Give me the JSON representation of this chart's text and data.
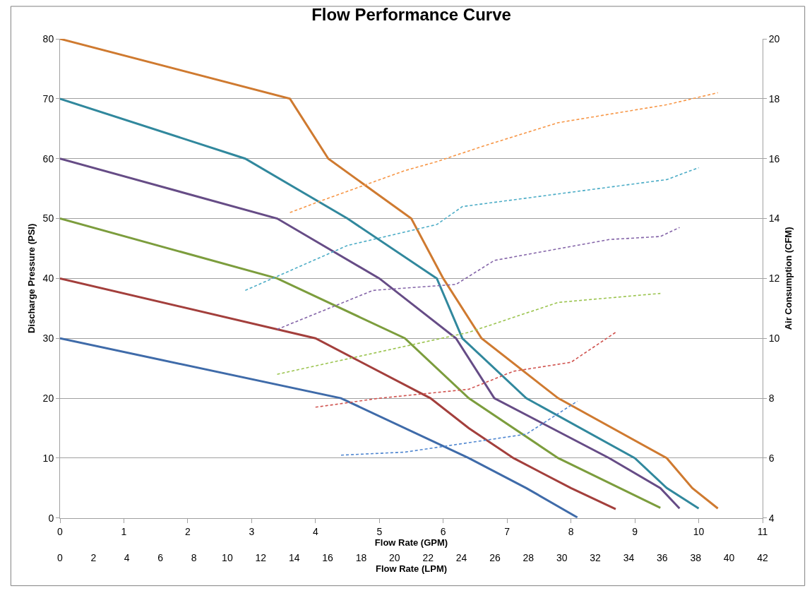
{
  "chart_data": {
    "type": "line",
    "title": "Flow Performance Curve",
    "xlabel": "Flow Rate (GPM)",
    "x2label": "Flow Rate (LPM)",
    "ylabel": "Discharge Pressure (PSI)",
    "y2label": "Air Consumption (CFM)",
    "xlim": [
      0,
      11
    ],
    "xticks": [
      0,
      1,
      2,
      3,
      4,
      5,
      6,
      7,
      8,
      9,
      10,
      11
    ],
    "x2lim": [
      0,
      42
    ],
    "x2ticks": [
      0,
      2,
      4,
      6,
      8,
      10,
      12,
      14,
      16,
      18,
      20,
      22,
      24,
      26,
      28,
      30,
      32,
      34,
      36,
      38,
      40,
      42
    ],
    "ylim": [
      0,
      80
    ],
    "yticks": [
      0,
      10,
      20,
      30,
      40,
      50,
      60,
      70,
      80
    ],
    "y2lim": [
      4,
      20
    ],
    "y2ticks": [
      4,
      6,
      8,
      10,
      12,
      14,
      16,
      18,
      20
    ],
    "grid": "y",
    "marker": "none",
    "series": [
      {
        "color": "#3f6ba9",
        "line_style": "solid",
        "x": [
          0,
          4.4,
          6.4,
          7.3,
          8.1
        ],
        "values": [
          30,
          20,
          10,
          5,
          0.1
        ]
      },
      {
        "color": "#a33f3c",
        "line_style": "solid",
        "x": [
          0,
          4,
          5.8,
          6.4,
          7.1,
          8,
          8.7
        ],
        "values": [
          40,
          30,
          20,
          15,
          10,
          5,
          1.5
        ]
      },
      {
        "color": "#7c9d3d",
        "line_style": "solid",
        "x": [
          0,
          3.4,
          5.4,
          6.4,
          7.8,
          9.4
        ],
        "values": [
          50,
          40,
          30,
          20,
          10,
          1.7
        ]
      },
      {
        "color": "#664c86",
        "line_style": "solid",
        "x": [
          0,
          3.4,
          5,
          6.2,
          6.8,
          8.6,
          9.4,
          9.7
        ],
        "values": [
          60,
          50,
          40,
          30,
          20,
          10,
          5,
          1.6
        ]
      },
      {
        "color": "#31889d",
        "line_style": "solid",
        "x": [
          0,
          2.9,
          4.5,
          5.9,
          6.3,
          7.3,
          9,
          9.5,
          10
        ],
        "values": [
          70,
          60,
          50,
          40,
          30,
          20,
          10,
          5,
          1.6
        ]
      },
      {
        "color": "#cf7a30",
        "line_style": "solid",
        "x": [
          0,
          3.6,
          4.2,
          5.5,
          6,
          6.6,
          7.8,
          9.5,
          9.9,
          10.3
        ],
        "values": [
          80,
          70,
          60,
          50,
          40,
          30,
          20,
          10,
          5,
          1.6
        ]
      },
      {
        "color": "#4f86d0",
        "line_style": "dashed",
        "axis": "y2",
        "x": [
          4.4,
          5.4,
          7.3,
          8.1
        ],
        "values": [
          6.1,
          6.2,
          6.8,
          7.9
        ]
      },
      {
        "color": "#d0534f",
        "line_style": "dashed",
        "axis": "y2",
        "x": [
          4,
          5,
          6.4,
          7.1,
          8,
          8.7
        ],
        "values": [
          7.7,
          8,
          8.3,
          8.9,
          9.2,
          10.2
        ]
      },
      {
        "color": "#9bc44f",
        "line_style": "dashed",
        "axis": "y2",
        "x": [
          3.4,
          6.4,
          7.8,
          9.4
        ],
        "values": [
          8.8,
          10.2,
          11.2,
          11.5
        ]
      },
      {
        "color": "#8464a8",
        "line_style": "dashed",
        "axis": "y2",
        "x": [
          3.4,
          4.9,
          6.2,
          6.8,
          8.6,
          9.4,
          9.7
        ],
        "values": [
          10.3,
          11.6,
          11.8,
          12.6,
          13.3,
          13.4,
          13.7
        ]
      },
      {
        "color": "#4bacc6",
        "line_style": "dashed",
        "axis": "y2",
        "x": [
          2.9,
          4.5,
          5.9,
          6.3,
          9.5,
          10
        ],
        "values": [
          11.6,
          13.1,
          13.8,
          14.4,
          15.3,
          15.7
        ]
      },
      {
        "color": "#f79646",
        "line_style": "dashed",
        "axis": "y2",
        "x": [
          3.6,
          4.1,
          5.4,
          5.9,
          6.6,
          7.8,
          9.5,
          10.3
        ],
        "values": [
          14.2,
          14.6,
          15.6,
          15.9,
          16.4,
          17.2,
          17.8,
          18.2
        ]
      }
    ]
  }
}
